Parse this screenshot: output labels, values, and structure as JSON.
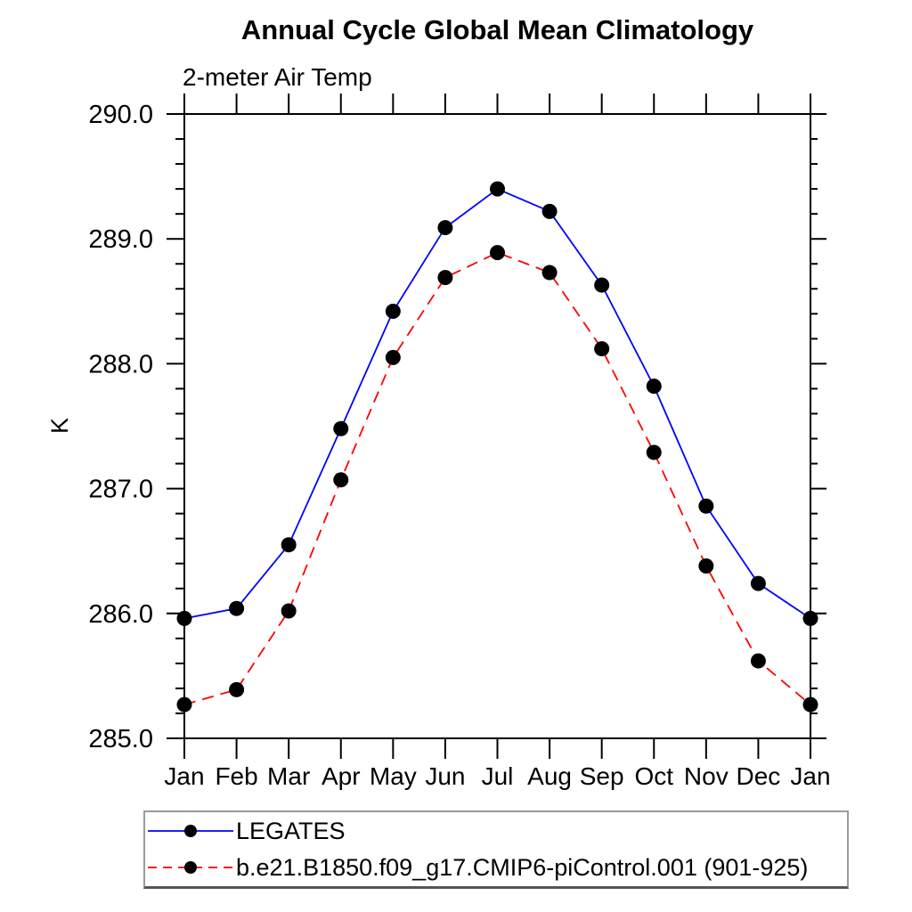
{
  "chart": {
    "title": "Annual Cycle Global Mean Climatology",
    "subtitle": "2-meter Air Temp",
    "ylabel": "K"
  },
  "chart_data": {
    "type": "line",
    "title": "Annual Cycle Global Mean Climatology",
    "subtitle": "2-meter Air Temp",
    "xlabel": "",
    "ylabel": "K",
    "categories": [
      "Jan",
      "Feb",
      "Mar",
      "Apr",
      "May",
      "Jun",
      "Jul",
      "Aug",
      "Sep",
      "Oct",
      "Nov",
      "Dec",
      "Jan"
    ],
    "series": [
      {
        "name": "LEGATES",
        "color": "#0000ff",
        "line_style": "solid",
        "marker": "filled-circle",
        "marker_color": "#000000",
        "values": [
          285.96,
          286.04,
          286.55,
          287.48,
          288.42,
          289.09,
          289.4,
          289.22,
          288.63,
          287.82,
          286.86,
          286.24,
          285.96
        ]
      },
      {
        "name": "b.e21.B1850.f09_g17.CMIP6-piControl.001 (901-925)",
        "color": "#ff0000",
        "line_style": "dashed",
        "marker": "filled-circle",
        "marker_color": "#000000",
        "values": [
          285.27,
          285.39,
          286.02,
          287.07,
          288.05,
          288.69,
          288.89,
          288.73,
          288.12,
          287.29,
          286.38,
          285.62,
          285.27
        ]
      }
    ],
    "ylim": [
      285.0,
      290.0
    ],
    "yticks_major": [
      285.0,
      286.0,
      287.0,
      288.0,
      289.0,
      290.0
    ],
    "ytick_label_decimals": 1,
    "ytick_minor_step": 0.2,
    "grid": false,
    "legend_position": "bottom-left-box",
    "axis_color": "#000000"
  }
}
